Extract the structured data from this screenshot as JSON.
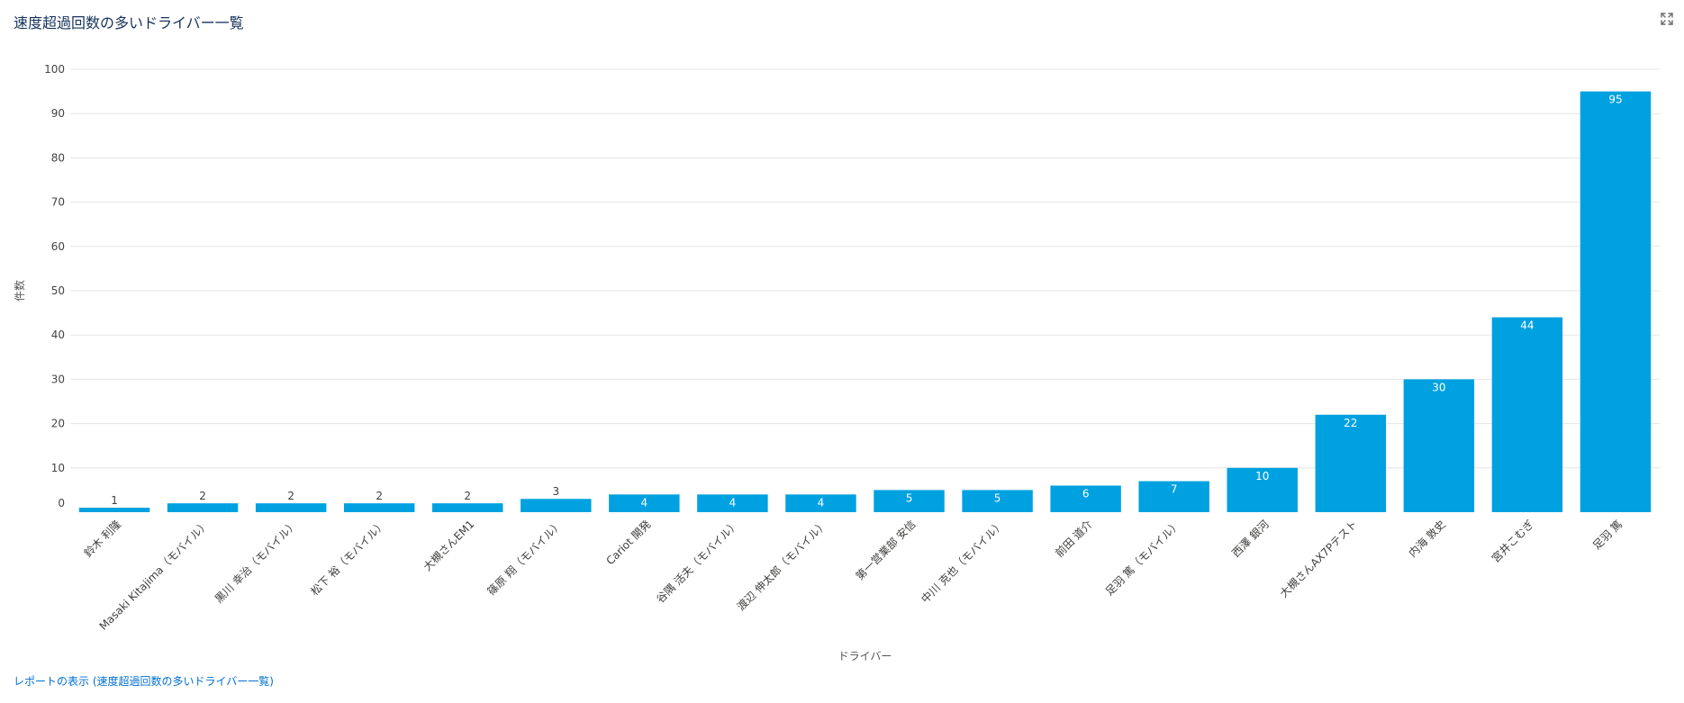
{
  "card": {
    "title": "速度超過回数の多いドライバー一覧",
    "report_link": "レポートの表示 (速度超過回数の多いドライバー一覧)",
    "expand_icon": "expand-icon"
  },
  "colors": {
    "bar": "#00a1e0",
    "grid": "#e5e5e5",
    "title": "#16325c",
    "link": "#0070d2"
  },
  "chart_data": {
    "type": "bar",
    "xlabel": "ドライバー",
    "ylabel": "件数",
    "ylim": [
      0,
      100
    ],
    "yticks": [
      0,
      10,
      20,
      30,
      40,
      50,
      60,
      70,
      80,
      90,
      100
    ],
    "grid": true,
    "categories": [
      "鈴木 利隆",
      "Masaki Kitajima（モバイル）",
      "黒川 幸治（モバイル）",
      "松下 裕（モバイル）",
      "大槻さんEM1",
      "篠原 翔（モバイル）",
      "Cariot 開発",
      "谷隅 活夫（モバイル）",
      "渡辺 伸太郎（モバイル）",
      "第一営業部 安信",
      "中川 克也（モバイル）",
      "前田 道介",
      "足羽 篤（モバイル）",
      "西澤 銀河",
      "大槻さんAX7Pテスト",
      "内海 敦史",
      "宮井こむぎ",
      "足羽 篤"
    ],
    "values": [
      1,
      2,
      2,
      2,
      2,
      3,
      4,
      4,
      4,
      5,
      5,
      6,
      7,
      10,
      22,
      30,
      44,
      95
    ]
  }
}
